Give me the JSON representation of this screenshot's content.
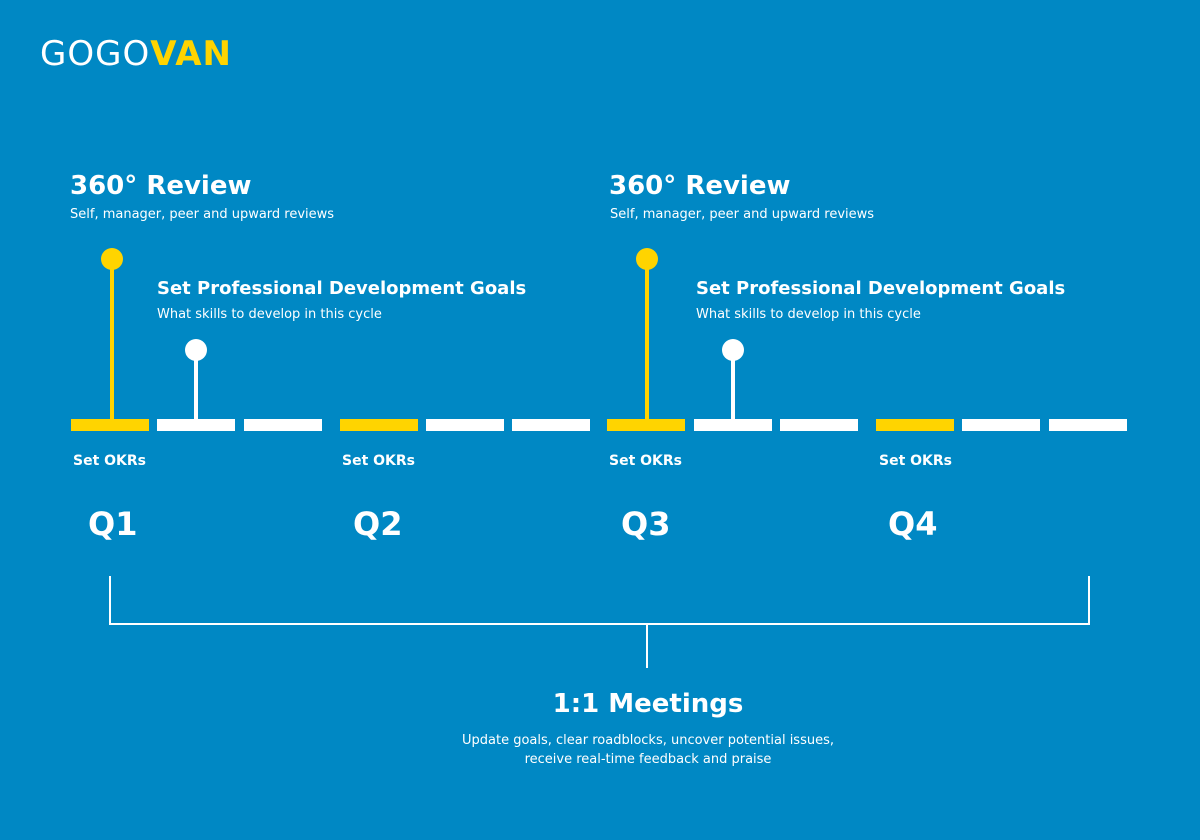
{
  "logo": {
    "part1": "GOGO",
    "part2": "VAN"
  },
  "reviews": [
    {
      "title": "360° Review",
      "subtitle": "Self, manager, peer and upward reviews"
    },
    {
      "title": "360° Review",
      "subtitle": "Self, manager, peer and upward reviews"
    }
  ],
  "goals": [
    {
      "title": "Set Professional Development Goals",
      "subtitle": "What skills to develop in this cycle"
    },
    {
      "title": "Set Professional Development Goals",
      "subtitle": "What skills to develop in this cycle"
    }
  ],
  "okr_label": "Set OKRs",
  "quarters": [
    "Q1",
    "Q2",
    "Q3",
    "Q4"
  ],
  "meetings": {
    "title": "1:1 Meetings",
    "line1": "Update goals, clear roadblocks, uncover potential issues,",
    "line2": "receive real-time feedback and praise"
  },
  "colors": {
    "background": "#0088c4",
    "accent": "#ffd400",
    "line": "#ffffff"
  }
}
